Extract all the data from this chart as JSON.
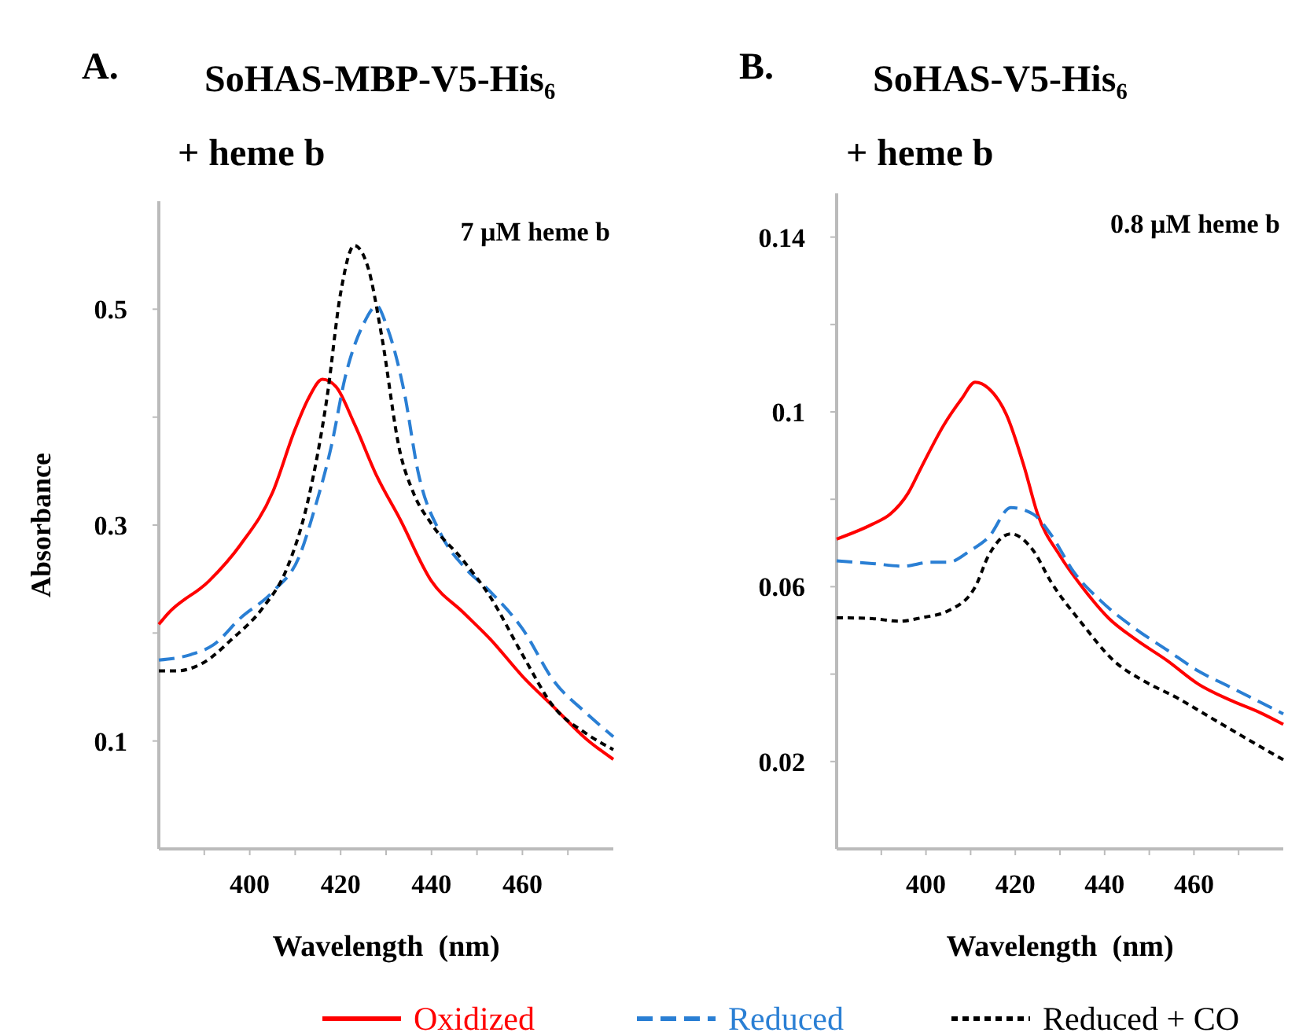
{
  "chart_data": [
    {
      "type": "line",
      "title": "SoHAS-MBP-V5-His₆",
      "subtitle": "+ heme b",
      "xlabel": "Wavelength  (nm)",
      "ylabel": "Absorbance",
      "annotations": [
        "A.",
        "7 µM heme b"
      ],
      "xlim": [
        380,
        480
      ],
      "ylim": [
        0,
        0.6
      ],
      "xticks": [
        {
          "value": 390,
          "label": null
        },
        400,
        {
          "value": 410,
          "label": null
        },
        420,
        {
          "value": 430,
          "label": null
        },
        440,
        {
          "value": 450,
          "label": null
        },
        460,
        {
          "value": 470,
          "label": null
        }
      ],
      "yticks": [
        0.1,
        {
          "value": 0.2,
          "label": null
        },
        0.3,
        {
          "value": 0.4,
          "label": null
        },
        0.5
      ],
      "grid": false,
      "legend": "bottom",
      "marker": "none",
      "series": [
        {
          "name": "Oxidized",
          "color": "#ff0000",
          "line_style": "solid",
          "x": [
            380,
            382,
            391,
            398,
            405,
            410,
            413,
            416,
            419,
            423,
            428,
            433,
            440,
            447,
            453,
            460,
            467,
            474,
            480
          ],
          "values": [
            0.208,
            0.218,
            0.248,
            0.282,
            0.33,
            0.389,
            0.418,
            0.435,
            0.428,
            0.394,
            0.345,
            0.306,
            0.248,
            0.219,
            0.194,
            0.16,
            0.131,
            0.102,
            0.083
          ]
        },
        {
          "name": "Reduced",
          "color": "#2a7fd4",
          "line_style": "dashed",
          "x": [
            380,
            387,
            392,
            398,
            405,
            411,
            414,
            418,
            421,
            425,
            428,
            430,
            434,
            437,
            442,
            447,
            453,
            460,
            467,
            474,
            480
          ],
          "values": [
            0.175,
            0.18,
            0.189,
            0.214,
            0.238,
            0.272,
            0.311,
            0.374,
            0.437,
            0.486,
            0.503,
            0.486,
            0.423,
            0.35,
            0.292,
            0.262,
            0.238,
            0.204,
            0.155,
            0.126,
            0.104
          ]
        },
        {
          "name": "Reduced + CO",
          "color": "#000000",
          "line_style": "dotted",
          "x": [
            380,
            384,
            390,
            396,
            403,
            408,
            413,
            417,
            420,
            423,
            426,
            429,
            433,
            436,
            440,
            447,
            453,
            460,
            467,
            474,
            480
          ],
          "values": [
            0.165,
            0.165,
            0.173,
            0.194,
            0.224,
            0.258,
            0.326,
            0.418,
            0.515,
            0.559,
            0.539,
            0.476,
            0.369,
            0.33,
            0.301,
            0.267,
            0.233,
            0.18,
            0.131,
            0.107,
            0.092
          ]
        }
      ]
    },
    {
      "type": "line",
      "title": "SoHAS-V5-His₆",
      "subtitle": "+ heme b",
      "xlabel": "Wavelength  (nm)",
      "annotations": [
        "B.",
        "0.8 µM heme b"
      ],
      "xlim": [
        380,
        480
      ],
      "ylim": [
        0,
        0.15
      ],
      "xticks": [
        {
          "value": 390,
          "label": null
        },
        400,
        {
          "value": 410,
          "label": null
        },
        420,
        {
          "value": 430,
          "label": null
        },
        440,
        {
          "value": 450,
          "label": null
        },
        460,
        {
          "value": 470,
          "label": null
        }
      ],
      "yticks": [
        0.02,
        {
          "value": 0.04,
          "label": null
        },
        0.06,
        {
          "value": 0.08,
          "label": null
        },
        0.1,
        {
          "value": 0.12,
          "label": null
        },
        0.14
      ],
      "grid": false,
      "marker": "none",
      "series": [
        {
          "color": "#ff0000",
          "line_style": "solid",
          "x": [
            380,
            388,
            392,
            396,
            399,
            404,
            408,
            411,
            414,
            418,
            422,
            425,
            430,
            435,
            441,
            447,
            454,
            461,
            468,
            475,
            480
          ],
          "values": [
            0.0709,
            0.0743,
            0.0766,
            0.0814,
            0.0874,
            0.097,
            0.103,
            0.1068,
            0.1054,
            0.0994,
            0.0874,
            0.0766,
            0.0671,
            0.0599,
            0.0527,
            0.0479,
            0.0431,
            0.0377,
            0.0341,
            0.0311,
            0.0285
          ]
        },
        {
          "color": "#2a7fd4",
          "line_style": "dashed",
          "x": [
            380,
            388,
            395,
            401,
            405,
            410,
            414,
            419,
            424,
            428,
            433,
            439,
            447,
            454,
            461,
            468,
            475,
            480
          ],
          "values": [
            0.0659,
            0.0653,
            0.0647,
            0.0656,
            0.0656,
            0.0683,
            0.0713,
            0.0781,
            0.0766,
            0.0719,
            0.0635,
            0.0569,
            0.0503,
            0.0455,
            0.0407,
            0.0371,
            0.0335,
            0.0309
          ]
        },
        {
          "color": "#000000",
          "line_style": "dotted",
          "x": [
            380,
            388,
            394,
            399,
            405,
            411,
            414,
            419,
            424,
            428,
            435,
            442,
            449,
            456,
            463,
            470,
            480
          ],
          "values": [
            0.0529,
            0.0527,
            0.0521,
            0.0529,
            0.0545,
            0.0599,
            0.0671,
            0.0721,
            0.0683,
            0.0611,
            0.0515,
            0.0431,
            0.0383,
            0.0347,
            0.0305,
            0.0263,
            0.0204
          ]
        }
      ]
    }
  ]
}
